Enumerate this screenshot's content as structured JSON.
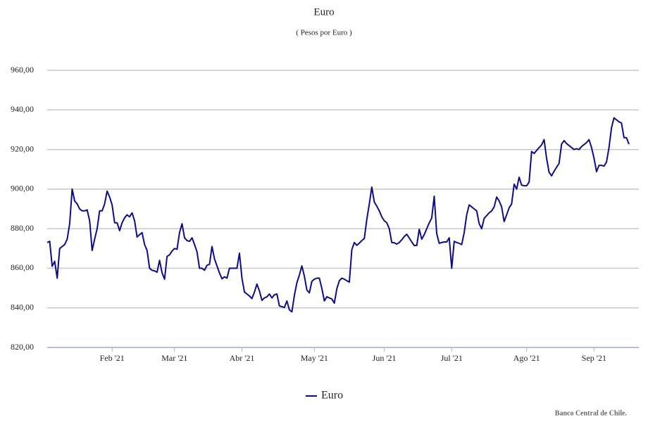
{
  "chart_data": {
    "type": "line",
    "title": "Euro",
    "subtitle": "( Pesos por Euro )",
    "source": "Banco Central de Chile.",
    "categories": [
      null,
      null,
      null,
      null,
      null,
      null,
      null,
      null,
      null,
      null,
      null,
      null,
      null,
      null,
      null,
      null,
      null,
      null,
      null,
      null,
      null,
      null,
      null,
      null,
      null,
      null,
      "Feb '21",
      null,
      null,
      null,
      null,
      null,
      null,
      null,
      null,
      null,
      null,
      null,
      null,
      null,
      null,
      null,
      null,
      null,
      null,
      null,
      null,
      null,
      null,
      null,
      null,
      "Mar '21",
      null,
      null,
      null,
      null,
      null,
      null,
      null,
      null,
      null,
      null,
      null,
      null,
      null,
      null,
      null,
      null,
      null,
      null,
      null,
      null,
      null,
      null,
      null,
      null,
      null,
      null,
      "Abr '21",
      null,
      null,
      null,
      null,
      null,
      null,
      null,
      null,
      null,
      null,
      null,
      null,
      null,
      null,
      null,
      null,
      null,
      null,
      null,
      null,
      null,
      null,
      null,
      null,
      null,
      null,
      null,
      null,
      "May '21",
      null,
      null,
      null,
      null,
      null,
      null,
      null,
      null,
      null,
      null,
      null,
      null,
      null,
      null,
      null,
      null,
      null,
      null,
      null,
      null,
      null,
      null,
      null,
      null,
      null,
      null,
      null,
      "Jun '21",
      null,
      null,
      null,
      null,
      null,
      null,
      null,
      null,
      null,
      null,
      null,
      null,
      null,
      null,
      null,
      null,
      null,
      null,
      null,
      null,
      null,
      null,
      null,
      null,
      null,
      null,
      "Jul '21",
      null,
      null,
      null,
      null,
      null,
      null,
      null,
      null,
      null,
      null,
      null,
      null,
      null,
      null,
      null,
      null,
      null,
      null,
      null,
      null,
      null,
      null,
      null,
      null,
      null,
      null,
      null,
      null,
      null,
      "Ago '21",
      null,
      null,
      null,
      null,
      null,
      null,
      null,
      null,
      null,
      null,
      null,
      null,
      null,
      null,
      null,
      null,
      null,
      null,
      null,
      null,
      null,
      null,
      null,
      null,
      null,
      null,
      "Sep '21",
      null,
      null,
      null,
      null,
      null,
      null,
      null,
      null,
      null,
      null,
      null,
      null,
      null,
      null
    ],
    "series": [
      {
        "name": "Euro",
        "color": "#0d0d85",
        "values": [
          873,
          873.6,
          861,
          863.5,
          855,
          870,
          871,
          872,
          874.7,
          882.5,
          900,
          894,
          892.5,
          890,
          889,
          889,
          889.5,
          884,
          869,
          874.7,
          880,
          889,
          889,
          892.5,
          899,
          896,
          892,
          883,
          883,
          879,
          883,
          885.5,
          887,
          886,
          888,
          884,
          875.8,
          877,
          878,
          872,
          869,
          860,
          859,
          858.7,
          858,
          864,
          857.7,
          854.5,
          866,
          866.8,
          868.7,
          870,
          869.6,
          878,
          882.5,
          875.4,
          874,
          873.6,
          875.4,
          872,
          868.3,
          860,
          860,
          859,
          861.5,
          862,
          871,
          864.8,
          861.2,
          857.6,
          854.7,
          855.7,
          855,
          860,
          860,
          860,
          860,
          867.6,
          855,
          848,
          847,
          846,
          844.7,
          848,
          852,
          848.5,
          843.8,
          845,
          845.6,
          847,
          845,
          846.6,
          847,
          841,
          840.6,
          840.2,
          843.5,
          839,
          838,
          846.3,
          852.7,
          856.6,
          861.2,
          856,
          849,
          847.6,
          853.4,
          854.5,
          855,
          855,
          849.8,
          843.5,
          845.6,
          845,
          844.5,
          842.4,
          849.7,
          853.7,
          855,
          854.5,
          853.7,
          853,
          869.4,
          873,
          871.6,
          872.7,
          874,
          875,
          884.7,
          892.5,
          901,
          893.5,
          891.4,
          889,
          886,
          884,
          883,
          880,
          873,
          872.9,
          872.2,
          873,
          874.4,
          876,
          877.2,
          875.3,
          873.3,
          871.5,
          871.5,
          879.7,
          874.7,
          877,
          880,
          882.9,
          885.4,
          896.4,
          877.5,
          872.6,
          873,
          873.3,
          873.3,
          875.4,
          860,
          873.6,
          873,
          872.6,
          872,
          878,
          887,
          892,
          891,
          890,
          889,
          882.5,
          880,
          885.2,
          886.6,
          888,
          889,
          891,
          896,
          894,
          891,
          883.6,
          887,
          890.5,
          892.5,
          902.5,
          900,
          906,
          902,
          901.7,
          901.7,
          903.5,
          919,
          918,
          919.5,
          921,
          922.3,
          925,
          915.6,
          908.5,
          906.7,
          909,
          911,
          913,
          922.7,
          924.5,
          923,
          922,
          921,
          920,
          920.4,
          920,
          921.5,
          922.5,
          923.5,
          925,
          921,
          915.6,
          908.8,
          912,
          912,
          911.6,
          913.7,
          921,
          931,
          936,
          935,
          934,
          933.4,
          926,
          926,
          922.7
        ]
      }
    ],
    "ylim": [
      820,
      960
    ],
    "yticks": [
      {
        "value": 820,
        "label": "820,00"
      },
      {
        "value": 840,
        "label": "840,00"
      },
      {
        "value": 860,
        "label": "860,00"
      },
      {
        "value": 880,
        "label": "880,00"
      },
      {
        "value": 900,
        "label": "900,00"
      },
      {
        "value": 920,
        "label": "920,00"
      },
      {
        "value": 940,
        "label": "940,00"
      },
      {
        "value": 960,
        "label": "960,00"
      }
    ],
    "grid": true,
    "legend": "bottom"
  }
}
